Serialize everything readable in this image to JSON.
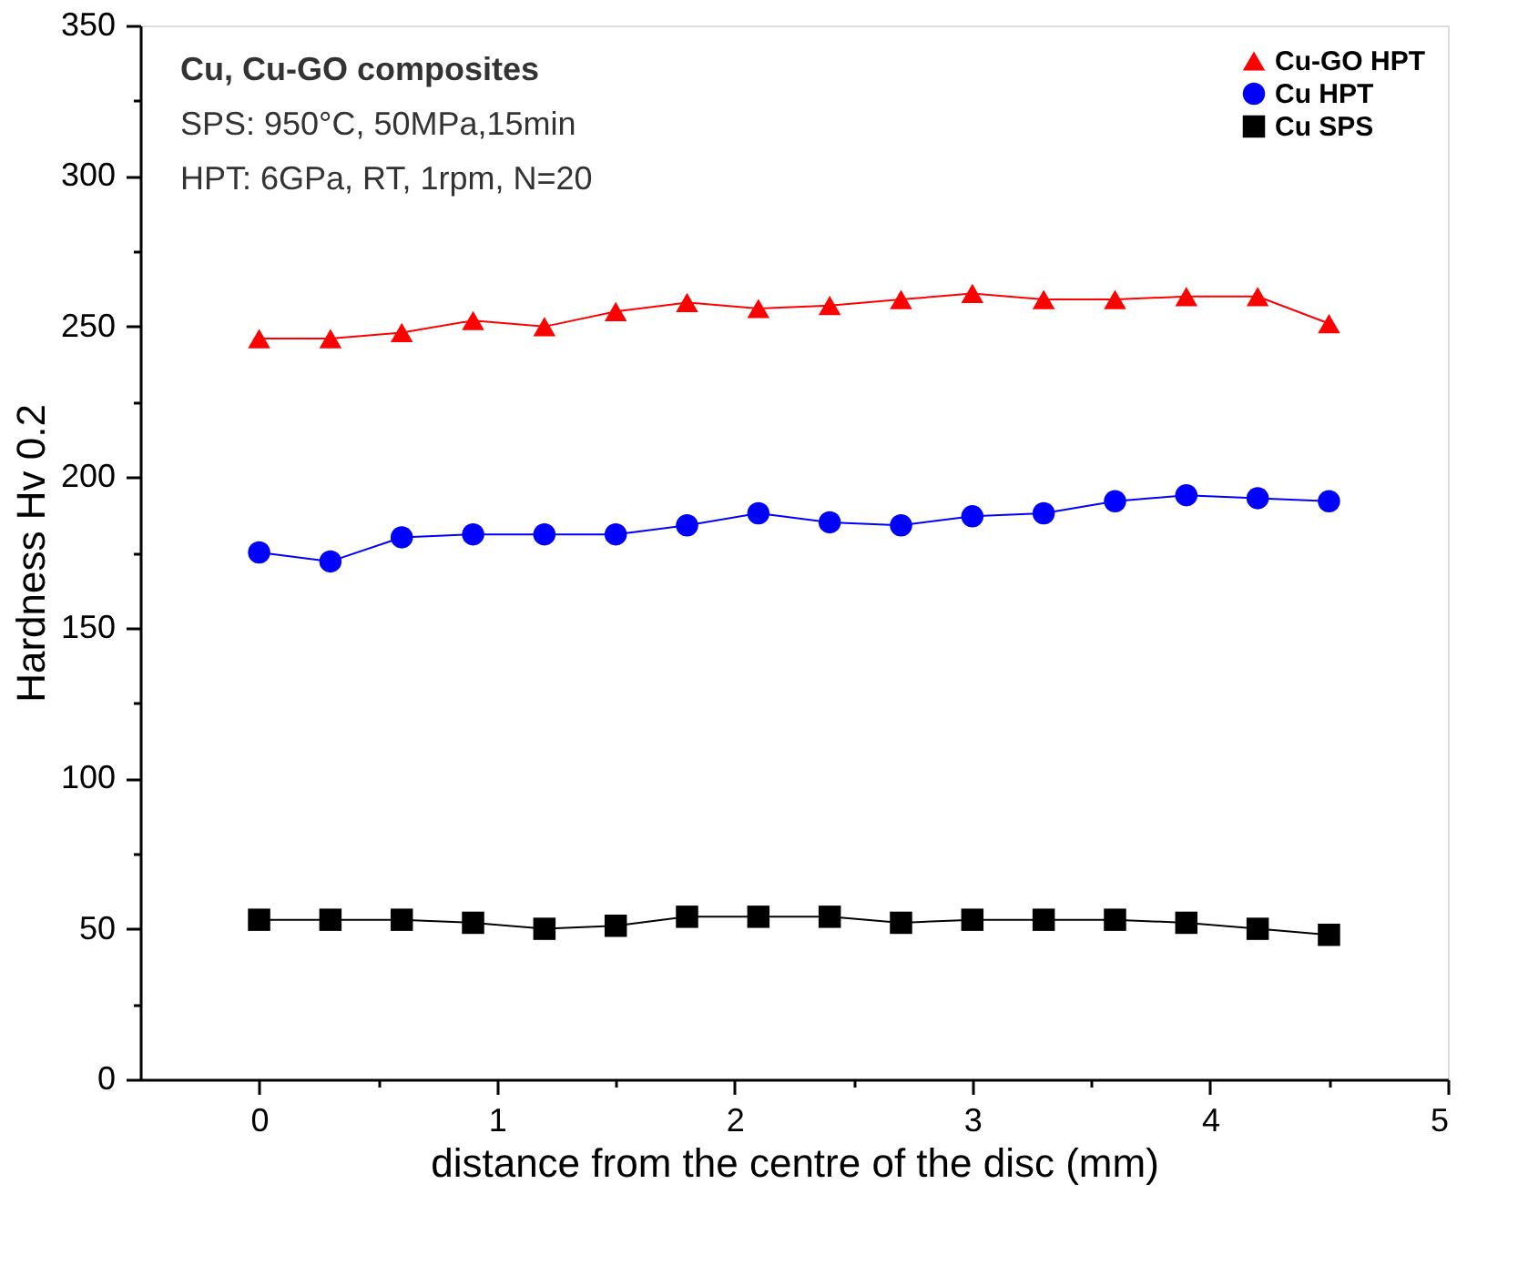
{
  "chart_data": {
    "type": "line",
    "xlabel": "distance from the centre of the disc (mm)",
    "ylabel": "Hardness Hv 0.2",
    "annotations": [
      "Cu, Cu-GO composites",
      "SPS: 950°C, 50MPa,15min",
      "HPT: 6GPa, RT, 1rpm, N=20"
    ],
    "x": [
      0,
      0.3,
      0.6,
      0.9,
      1.2,
      1.5,
      1.8,
      2.1,
      2.4,
      2.7,
      3.0,
      3.3,
      3.6,
      3.9,
      4.2,
      4.5
    ],
    "series": [
      {
        "name": "Cu-GO HPT",
        "color": "#ff0000",
        "marker": "triangle",
        "values": [
          246,
          246,
          248,
          252,
          250,
          255,
          258,
          256,
          257,
          259,
          261,
          259,
          259,
          260,
          260,
          251
        ]
      },
      {
        "name": "Cu HPT",
        "color": "#0000ff",
        "marker": "circle",
        "values": [
          175,
          172,
          180,
          181,
          181,
          181,
          184,
          188,
          185,
          184,
          187,
          188,
          192,
          194,
          193,
          192
        ]
      },
      {
        "name": "Cu SPS",
        "color": "#000000",
        "marker": "square",
        "values": [
          53,
          53,
          53,
          52,
          50,
          51,
          54,
          54,
          54,
          52,
          53,
          53,
          53,
          52,
          50,
          48
        ]
      }
    ],
    "xlim": [
      -0.5,
      5
    ],
    "xticks": [
      0,
      {
        "value": 0.5,
        "label": null
      },
      1,
      {
        "value": 1.5,
        "label": null
      },
      2,
      {
        "value": 2.5,
        "label": null
      },
      3,
      {
        "value": 3.5,
        "label": null
      },
      4,
      {
        "value": 4.5,
        "label": null
      },
      5
    ],
    "ylim": [
      0,
      350
    ],
    "yticks": [
      0,
      {
        "value": 25,
        "label": null
      },
      50,
      {
        "value": 75,
        "label": null
      },
      100,
      {
        "value": 125,
        "label": null
      },
      150,
      {
        "value": 175,
        "label": null
      },
      200,
      {
        "value": 225,
        "label": null
      },
      250,
      {
        "value": 275,
        "label": null
      },
      300,
      {
        "value": 325,
        "label": null
      },
      350
    ],
    "grid": false,
    "legend": "top right",
    "line_style": "solid"
  }
}
